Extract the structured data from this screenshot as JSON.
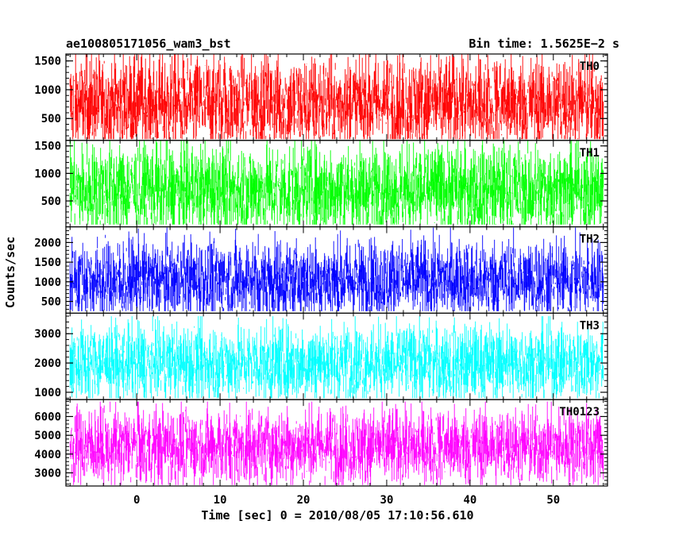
{
  "header": {
    "title": "ae100805171056_wam3_bst",
    "bin_time": "Bin time: 1.5625E−2 s"
  },
  "axes": {
    "xlabel": "Time [sec] 0 = 2010/08/05 17:10:56.610",
    "ylabel": "Counts/sec"
  },
  "chart_data": {
    "type": "line",
    "title": "ae100805171056_wam3_bst",
    "xlabel": "Time [sec] 0 = 2010/08/05 17:10:56.610",
    "ylabel": "Counts/sec",
    "xlim": [
      -8.5,
      56.5
    ],
    "x_ticks": [
      0,
      10,
      20,
      30,
      40,
      50
    ],
    "x_range_data": [
      -8,
      56
    ],
    "grid": false,
    "panels": [
      {
        "name": "TH0",
        "color": "#ff0000",
        "ylim": [
          120,
          1620
        ],
        "y_ticks": [
          500,
          1000,
          1500
        ],
        "mean": 760,
        "typical_low": 350,
        "typical_high": 1200,
        "min": 140,
        "max": 1620
      },
      {
        "name": "TH1",
        "color": "#00ff00",
        "ylim": [
          30,
          1600
        ],
        "y_ticks": [
          500,
          1000,
          1500
        ],
        "mean": 700,
        "typical_low": 300,
        "typical_high": 1150,
        "min": 70,
        "max": 1600
      },
      {
        "name": "TH2",
        "color": "#0000ff",
        "ylim": [
          200,
          2400
        ],
        "y_ticks": [
          500,
          1000,
          1500,
          2000
        ],
        "mean": 1050,
        "typical_low": 600,
        "typical_high": 1650,
        "min": 250,
        "max": 2380
      },
      {
        "name": "TH3",
        "color": "#00ffff",
        "ylim": [
          750,
          3700
        ],
        "y_ticks": [
          1000,
          2000,
          3000
        ],
        "mean": 2000,
        "typical_low": 1350,
        "typical_high": 2700,
        "min": 800,
        "max": 3600
      },
      {
        "name": "TH0123",
        "color": "#ff00ff",
        "ylim": [
          2300,
          6900
        ],
        "y_ticks": [
          3000,
          4000,
          5000,
          6000
        ],
        "mean": 4400,
        "typical_low": 3400,
        "typical_high": 5500,
        "min": 2350,
        "max": 6800
      }
    ]
  }
}
